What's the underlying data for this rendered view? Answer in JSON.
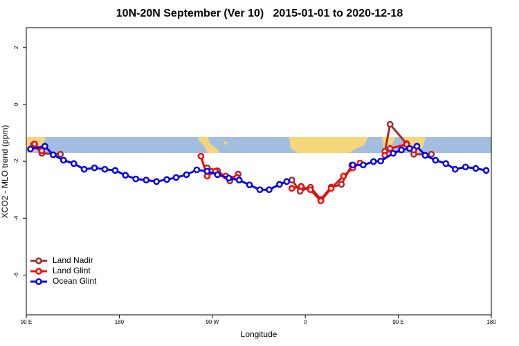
{
  "chart_data": {
    "type": "line",
    "title": "10N-20N September (Ver 10)   2015-01-01 to 2020-12-18",
    "x_label": "Longitude",
    "y_label": "XCO2 - MLO trend (ppm)",
    "xlim": [
      90,
      540
    ],
    "xticks": [
      {
        "value": 90,
        "label": "90 E"
      },
      180,
      {
        "value": 270,
        "label": "90 W"
      },
      {
        "value": 360,
        "label": "0"
      },
      {
        "value": 450,
        "label": "90 E"
      },
      {
        "value": 540,
        "label": "180"
      }
    ],
    "ylim": [
      -7.4,
      2.7
    ],
    "yticks": [
      2,
      0,
      -2,
      -4,
      -6
    ],
    "legend": "bottom-left",
    "series": [
      {
        "name": "Land Nadir",
        "color": "#a52a2a",
        "x": [
          97,
          105,
          123,
          null,
          265,
          275,
          287,
          295,
          null,
          347,
          355,
          365,
          375,
          385,
          395,
          405,
          null,
          437,
          442,
          458,
          465,
          482
        ],
        "values": [
          -1.41,
          -1.72,
          -1.75,
          null,
          -2.23,
          -2.33,
          -2.69,
          -2.45,
          null,
          -2.66,
          -3.05,
          -2.91,
          -3.34,
          -2.91,
          -2.81,
          -2.13,
          null,
          -1.65,
          -0.7,
          -1.38,
          -1.75,
          -1.75
        ]
      },
      {
        "name": "Land Glint",
        "color": "#ff0000",
        "x": [
          98,
          105,
          null,
          259,
          265,
          273,
          283,
          294,
          null,
          347,
          356,
          365,
          375,
          385,
          397,
          406,
          413,
          null,
          437,
          442,
          458,
          465
        ],
        "values": [
          -1.39,
          -1.63,
          null,
          -1.82,
          -2.52,
          -2.35,
          -2.52,
          -2.57,
          null,
          -2.95,
          -2.88,
          -3.0,
          -3.39,
          -2.95,
          -2.52,
          -2.23,
          -2.06,
          null,
          -1.79,
          -1.55,
          -1.4,
          -1.6
        ]
      },
      {
        "name": "Ocean Glint",
        "color": "#0000ee",
        "x": [
          94,
          108,
          116,
          126,
          136,
          146,
          156,
          166,
          176,
          186,
          196,
          206,
          216,
          226,
          235,
          245,
          255,
          265,
          275,
          286,
          296,
          306,
          316,
          325,
          335,
          342,
          null,
          406,
          416,
          426,
          433,
          445,
          453,
          461,
          468,
          476,
          486,
          496,
          505,
          515,
          525,
          535
        ],
        "values": [
          -1.57,
          -1.47,
          -1.77,
          -1.96,
          -2.08,
          -2.28,
          -2.23,
          -2.28,
          -2.32,
          -2.49,
          -2.62,
          -2.66,
          -2.71,
          -2.64,
          -2.57,
          -2.47,
          -2.3,
          -2.35,
          -2.47,
          -2.59,
          -2.66,
          -2.83,
          -3.0,
          -3.0,
          -2.81,
          -2.71,
          null,
          -2.13,
          -2.13,
          -2.01,
          -1.99,
          -1.72,
          -1.6,
          -1.55,
          -1.47,
          -1.79,
          -1.96,
          -2.08,
          -2.28,
          -2.2,
          -2.25,
          -2.32
        ]
      }
    ]
  }
}
